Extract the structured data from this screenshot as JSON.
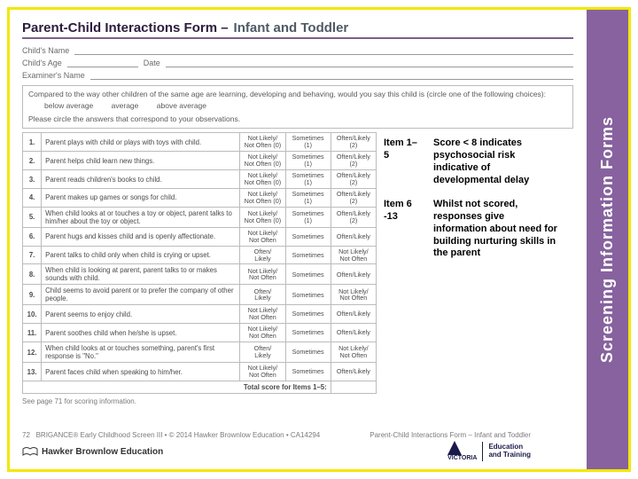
{
  "title_main": "Parent-Child Interactions Form –",
  "title_sub": "Infant and Toddler",
  "side_label": "Screening Information Forms",
  "field_child_name": "Child's Name",
  "field_child_age": "Child's Age",
  "field_date": "Date",
  "field_examiner": "Examiner's Name",
  "instr_line1": "Compared to the way other children of the same age are learning, developing and behaving, would you say this child is (circle one of the following choices):",
  "opt_below": "below average",
  "opt_avg": "average",
  "opt_above": "above average",
  "instr_line2": "Please circle the answers that correspond to your observations.",
  "items": [
    {
      "n": "1.",
      "d": "Parent plays with child or plays with toys with child.",
      "a": "Not Likely/\nNot Often (0)",
      "b": "Sometimes\n(1)",
      "c": "Often/Likely\n(2)"
    },
    {
      "n": "2.",
      "d": "Parent helps child learn new things.",
      "a": "Not Likely/\nNot Often (0)",
      "b": "Sometimes\n(1)",
      "c": "Often/Likely\n(2)"
    },
    {
      "n": "3.",
      "d": "Parent reads children's books to child.",
      "a": "Not Likely/\nNot Often (0)",
      "b": "Sometimes\n(1)",
      "c": "Often/Likely\n(2)"
    },
    {
      "n": "4.",
      "d": "Parent makes up games or songs for child.",
      "a": "Not Likely/\nNot Often (0)",
      "b": "Sometimes\n(1)",
      "c": "Often/Likely\n(2)"
    },
    {
      "n": "5.",
      "d": "When child looks at or touches a toy or object, parent talks to him/her about the toy or object.",
      "a": "Not Likely/\nNot Often (0)",
      "b": "Sometimes\n(1)",
      "c": "Often/Likely\n(2)"
    },
    {
      "n": "6.",
      "d": "Parent hugs and kisses child and is openly affectionate.",
      "a": "Not Likely/\nNot Often",
      "b": "Sometimes",
      "c": "Often/Likely"
    },
    {
      "n": "7.",
      "d": "Parent talks to child only when child is crying or upset.",
      "a": "Often/\nLikely",
      "b": "Sometimes",
      "c": "Not Likely/\nNot Often"
    },
    {
      "n": "8.",
      "d": "When child is looking at parent, parent talks to or makes sounds with child.",
      "a": "Not Likely/\nNot Often",
      "b": "Sometimes",
      "c": "Often/Likely"
    },
    {
      "n": "9.",
      "d": "Child seems to avoid parent or to prefer the company of other people.",
      "a": "Often/\nLikely",
      "b": "Sometimes",
      "c": "Not Likely/\nNot Often"
    },
    {
      "n": "10.",
      "d": "Parent seems to enjoy child.",
      "a": "Not Likely/\nNot Often",
      "b": "Sometimes",
      "c": "Often/Likely"
    },
    {
      "n": "11.",
      "d": "Parent soothes child when he/she is upset.",
      "a": "Not Likely/\nNot Often",
      "b": "Sometimes",
      "c": "Often/Likely"
    },
    {
      "n": "12.",
      "d": "When child looks at or touches something, parent's first response is \"No.\"",
      "a": "Often/\nLikely",
      "b": "Sometimes",
      "c": "Not Likely/\nNot Often"
    },
    {
      "n": "13.",
      "d": "Parent faces child when speaking to him/her.",
      "a": "Not Likely/\nNot Often",
      "b": "Sometimes",
      "c": "Often/Likely"
    }
  ],
  "total_label": "Total score for Items 1–5:",
  "scoring_note": "See page 71 for scoring information.",
  "footer_left_pg": "72",
  "footer_left_txt": "BRIGANCE® Early Childhood Screen III • © 2014 Hawker Brownlow Education • CA14294",
  "footer_right": "Parent-Child Interactions Form – Infant and Toddler",
  "publisher": "Hawker Brownlow Education",
  "vic_label": "VICTORIA",
  "vic_sub": "State\nGovernment",
  "edu_label": "Education\nand Training",
  "callout1_label": "Item 1– 5",
  "callout1_text": "Score < 8 indicates psychosocial risk indicative of developmental delay",
  "callout2_label": "Item 6 -13",
  "callout2_text": "Whilst not scored, responses give information about need for building nurturing skills in the parent"
}
